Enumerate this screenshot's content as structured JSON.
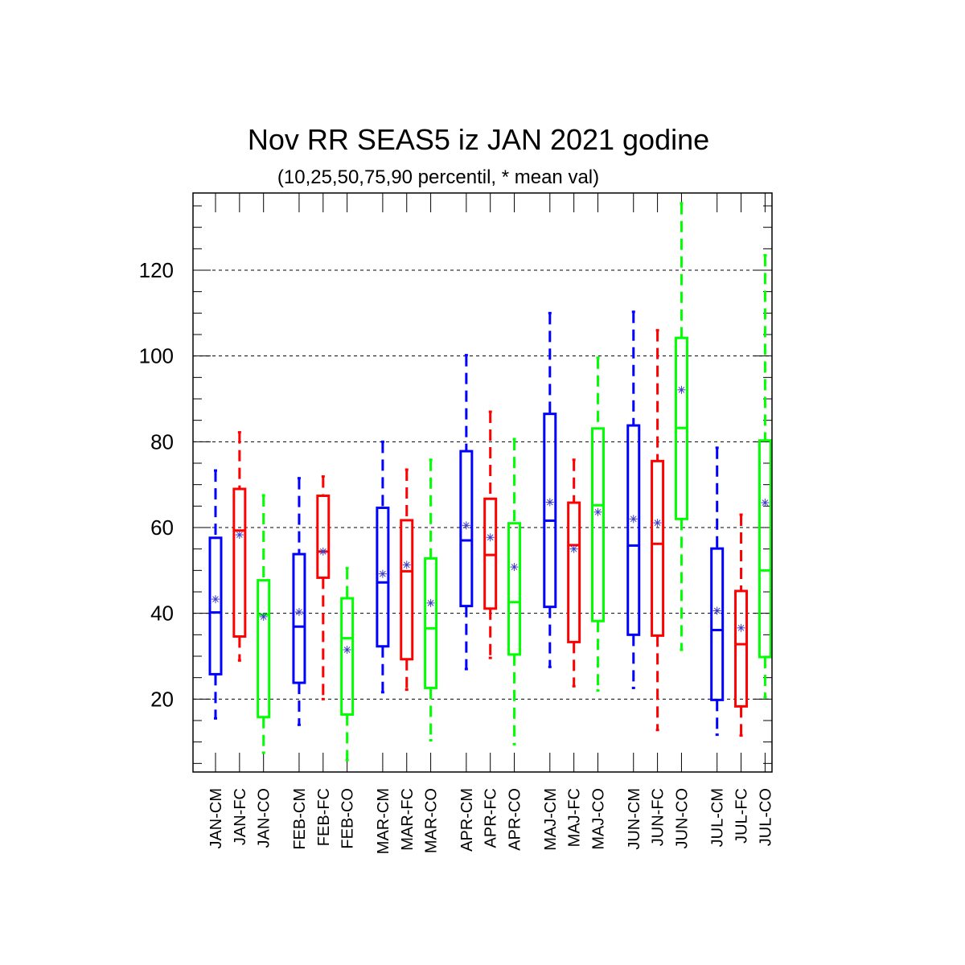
{
  "chart_data": {
    "type": "box",
    "title": "Nov RR SEAS5 iz JAN 2021 godine",
    "subtitle": "(10,25,50,75,90 percentil, * mean val)",
    "xlabel": "",
    "ylabel": "",
    "ylim": [
      3,
      138
    ],
    "yticks": [
      20,
      40,
      60,
      80,
      100,
      120
    ],
    "grid": "horizontal-dashed",
    "colors": {
      "CM": "#0000ff",
      "FC": "#ff0000",
      "CO": "#00ff00",
      "mean_marker": "#3c3cc8"
    },
    "groups": [
      "JAN",
      "FEB",
      "MAR",
      "APR",
      "MAJ",
      "JUN",
      "JUL"
    ],
    "boxes": [
      {
        "label": "JAN-CM",
        "color": "CM",
        "p10": 15.5,
        "p25": 25.8,
        "p50": 40.2,
        "p75": 57.6,
        "p90": 73.3,
        "mean": 43.3
      },
      {
        "label": "JAN-FC",
        "color": "FC",
        "p10": 29.0,
        "p25": 34.6,
        "p50": 59.3,
        "p75": 69.0,
        "p90": 82.2,
        "mean": 58.3
      },
      {
        "label": "JAN-CO",
        "color": "CO",
        "p10": 7.5,
        "p25": 15.8,
        "p50": 39.7,
        "p75": 47.7,
        "p90": 67.5,
        "mean": 39.2
      },
      {
        "label": "FEB-CM",
        "color": "CM",
        "p10": 14.0,
        "p25": 23.8,
        "p50": 36.9,
        "p75": 53.8,
        "p90": 71.5,
        "mean": 40.3
      },
      {
        "label": "FEB-FC",
        "color": "FC",
        "p10": 20.0,
        "p25": 48.3,
        "p50": 54.4,
        "p75": 67.4,
        "p90": 71.9,
        "mean": 54.4
      },
      {
        "label": "FEB-CO",
        "color": "CO",
        "p10": 5.8,
        "p25": 16.4,
        "p50": 34.2,
        "p75": 43.5,
        "p90": 50.5,
        "mean": 31.5
      },
      {
        "label": "MAR-CM",
        "color": "CM",
        "p10": 21.6,
        "p25": 32.3,
        "p50": 47.2,
        "p75": 64.6,
        "p90": 80.0,
        "mean": 49.2
      },
      {
        "label": "MAR-FC",
        "color": "FC",
        "p10": 22.2,
        "p25": 29.3,
        "p50": 49.8,
        "p75": 61.7,
        "p90": 73.5,
        "mean": 51.3
      },
      {
        "label": "MAR-CO",
        "color": "CO",
        "p10": 10.4,
        "p25": 22.6,
        "p50": 36.5,
        "p75": 52.8,
        "p90": 75.8,
        "mean": 42.4
      },
      {
        "label": "APR-CM",
        "color": "CM",
        "p10": 27.0,
        "p25": 41.7,
        "p50": 57.0,
        "p75": 77.8,
        "p90": 100.2,
        "mean": 60.5
      },
      {
        "label": "APR-FC",
        "color": "FC",
        "p10": 29.6,
        "p25": 41.1,
        "p50": 53.6,
        "p75": 66.7,
        "p90": 87.0,
        "mean": 57.7
      },
      {
        "label": "APR-CO",
        "color": "CO",
        "p10": 9.5,
        "p25": 30.4,
        "p50": 42.6,
        "p75": 61.0,
        "p90": 80.6,
        "mean": 50.8
      },
      {
        "label": "MAJ-CM",
        "color": "CM",
        "p10": 27.5,
        "p25": 41.5,
        "p50": 61.6,
        "p75": 86.5,
        "p90": 110.0,
        "mean": 65.9
      },
      {
        "label": "MAJ-FC",
        "color": "FC",
        "p10": 23.0,
        "p25": 33.3,
        "p50": 55.9,
        "p75": 65.8,
        "p90": 75.8,
        "mean": 55.0
      },
      {
        "label": "MAJ-CO",
        "color": "CO",
        "p10": 22.0,
        "p25": 38.2,
        "p50": 65.2,
        "p75": 83.1,
        "p90": 99.6,
        "mean": 63.6
      },
      {
        "label": "JUN-CM",
        "color": "CM",
        "p10": 22.6,
        "p25": 35.0,
        "p50": 55.8,
        "p75": 83.8,
        "p90": 110.3,
        "mean": 62.0
      },
      {
        "label": "JUN-FC",
        "color": "FC",
        "p10": 12.8,
        "p25": 34.8,
        "p50": 56.2,
        "p75": 75.5,
        "p90": 106.0,
        "mean": 61.1
      },
      {
        "label": "JUN-CO",
        "color": "CO",
        "p10": 31.5,
        "p25": 62.0,
        "p50": 83.2,
        "p75": 104.2,
        "p90": 135.6,
        "mean": 92.1
      },
      {
        "label": "JUL-CM",
        "color": "CM",
        "p10": 11.7,
        "p25": 19.8,
        "p50": 36.1,
        "p75": 55.1,
        "p90": 78.6,
        "mean": 40.6
      },
      {
        "label": "JUL-FC",
        "color": "FC",
        "p10": 11.5,
        "p25": 18.3,
        "p50": 32.8,
        "p75": 45.2,
        "p90": 63.0,
        "mean": 36.6
      },
      {
        "label": "JUL-CO",
        "color": "CO",
        "p10": 20.4,
        "p25": 29.8,
        "p50": 50.0,
        "p75": 80.3,
        "p90": 123.5,
        "mean": 65.8
      }
    ]
  }
}
